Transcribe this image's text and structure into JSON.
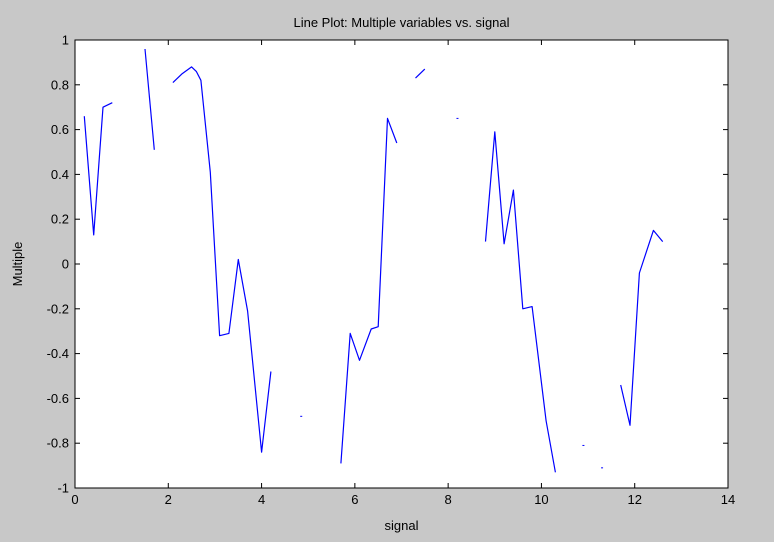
{
  "chart_data": {
    "type": "line",
    "title": "Line Plot: Multiple variables vs. signal",
    "xlabel": "signal",
    "ylabel": "Multiple",
    "xlim": [
      0,
      14
    ],
    "ylim": [
      -1,
      1
    ],
    "xticks": [
      0,
      2,
      4,
      6,
      8,
      10,
      12,
      14
    ],
    "yticks": [
      -1,
      -0.8,
      -0.6,
      -0.4,
      -0.2,
      0,
      0.2,
      0.4,
      0.6,
      0.8,
      1
    ],
    "xtick_labels": [
      "0",
      "2",
      "4",
      "6",
      "8",
      "10",
      "12",
      "14"
    ],
    "ytick_labels": [
      "-1",
      "-0.8",
      "-0.6",
      "-0.4",
      "-0.2",
      "0",
      "0.2",
      "0.4",
      "0.6",
      "0.8",
      "1"
    ],
    "grid": false,
    "legend": "none",
    "line_color": "#0000ff",
    "background_color": "#c8c8c8",
    "plot_background_color": "#ffffff",
    "series": [
      {
        "points": [
          [
            0.2,
            0.66
          ],
          [
            0.4,
            0.13
          ],
          [
            0.6,
            0.7
          ],
          [
            0.8,
            0.72
          ]
        ]
      },
      {
        "points": [
          [
            1.5,
            0.96
          ],
          [
            1.7,
            0.51
          ]
        ]
      },
      {
        "points": [
          [
            2.1,
            0.81
          ],
          [
            2.3,
            0.85
          ],
          [
            2.5,
            0.88
          ],
          [
            2.6,
            0.86
          ],
          [
            2.7,
            0.82
          ],
          [
            2.9,
            0.41
          ],
          [
            3.1,
            -0.32
          ],
          [
            3.3,
            -0.31
          ],
          [
            3.5,
            0.02
          ],
          [
            3.7,
            -0.21
          ],
          [
            4.0,
            -0.84
          ],
          [
            4.2,
            -0.48
          ]
        ]
      },
      {
        "points": [
          [
            4.85,
            -0.68
          ]
        ]
      },
      {
        "points": [
          [
            5.7,
            -0.89
          ],
          [
            5.9,
            -0.31
          ],
          [
            6.1,
            -0.43
          ],
          [
            6.35,
            -0.29
          ],
          [
            6.5,
            -0.28
          ],
          [
            6.7,
            0.65
          ],
          [
            6.9,
            0.54
          ]
        ]
      },
      {
        "points": [
          [
            7.3,
            0.83
          ],
          [
            7.5,
            0.87
          ]
        ]
      },
      {
        "points": [
          [
            8.2,
            0.65
          ]
        ]
      },
      {
        "points": [
          [
            8.8,
            0.1
          ],
          [
            9.0,
            0.59
          ],
          [
            9.2,
            0.09
          ],
          [
            9.4,
            0.33
          ],
          [
            9.6,
            -0.2
          ],
          [
            9.8,
            -0.19
          ],
          [
            10.1,
            -0.7
          ],
          [
            10.3,
            -0.93
          ]
        ]
      },
      {
        "points": [
          [
            10.9,
            -0.81
          ]
        ]
      },
      {
        "points": [
          [
            11.3,
            -0.91
          ]
        ]
      },
      {
        "points": [
          [
            11.7,
            -0.54
          ],
          [
            11.9,
            -0.72
          ],
          [
            12.1,
            -0.04
          ],
          [
            12.4,
            0.15
          ],
          [
            12.6,
            0.1
          ]
        ]
      }
    ]
  }
}
